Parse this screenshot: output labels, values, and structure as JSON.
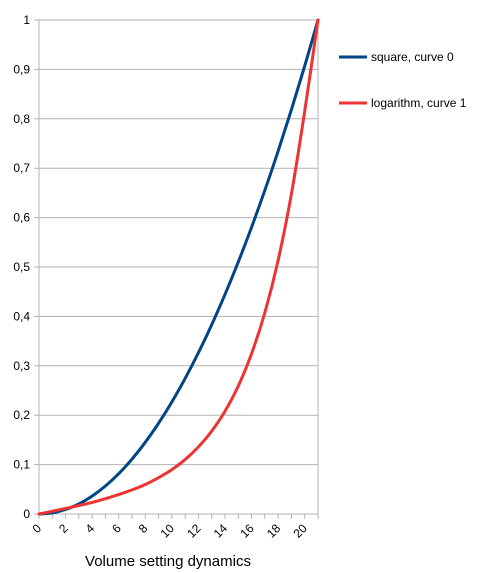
{
  "chart_data": {
    "type": "line",
    "title": "",
    "xlabel": "Volume setting dynamics",
    "ylabel": "",
    "xlim": [
      0,
      21
    ],
    "ylim": [
      0,
      1
    ],
    "x": [
      0,
      1,
      2,
      3,
      4,
      5,
      6,
      7,
      8,
      9,
      10,
      11,
      12,
      13,
      14,
      15,
      16,
      17,
      18,
      19,
      20,
      21
    ],
    "xticks": [
      "0",
      "2",
      "4",
      "6",
      "8",
      "10",
      "12",
      "14",
      "16",
      "18",
      "20"
    ],
    "yticks": [
      "0",
      "0,1",
      "0,2",
      "0,3",
      "0,4",
      "0,5",
      "0,6",
      "0,7",
      "0,8",
      "0,9",
      "1"
    ],
    "grid": true,
    "legend_position": "right",
    "series": [
      {
        "name": "square, curve 0",
        "color": "#004586",
        "values": [
          0,
          0.0023,
          0.0091,
          0.0204,
          0.0363,
          0.0567,
          0.0816,
          0.1111,
          0.1451,
          0.1837,
          0.2268,
          0.2744,
          0.3265,
          0.3832,
          0.4444,
          0.5102,
          0.5805,
          0.6553,
          0.7347,
          0.8186,
          0.907,
          1.0
        ]
      },
      {
        "name": "logarithm, curve 1",
        "color": "#ee3333",
        "values": [
          0,
          0.0055,
          0.0113,
          0.0172,
          0.0235,
          0.0311,
          0.0394,
          0.0488,
          0.0598,
          0.0735,
          0.0898,
          0.1102,
          0.1358,
          0.1677,
          0.2079,
          0.2592,
          0.3245,
          0.4076,
          0.5135,
          0.648,
          0.8154,
          1.0
        ]
      }
    ]
  }
}
